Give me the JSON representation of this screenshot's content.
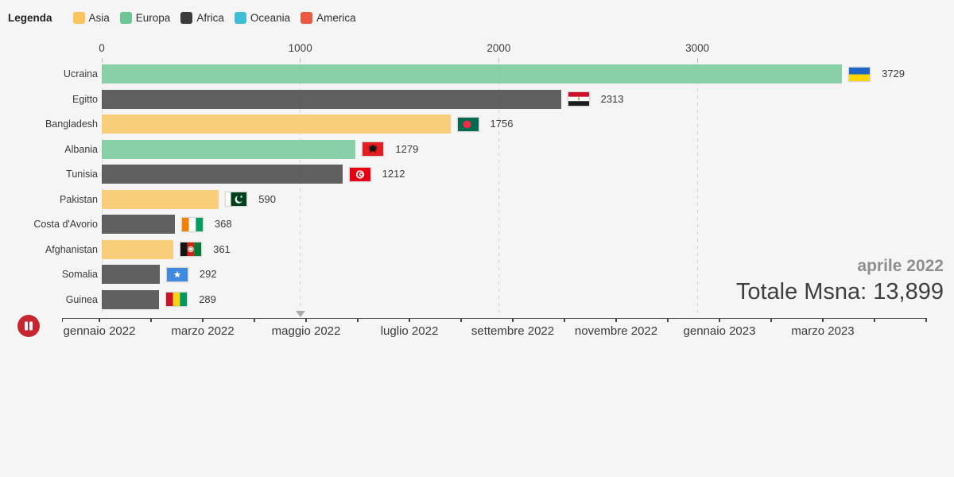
{
  "legend": {
    "title": "Legenda",
    "items": [
      {
        "label": "Asia",
        "color": "#FAC45B"
      },
      {
        "label": "Europa",
        "color": "#6EC694"
      },
      {
        "label": "Africa",
        "color": "#3B3B3B"
      },
      {
        "label": "Oceania",
        "color": "#3EBED4"
      },
      {
        "label": "America",
        "color": "#EA5A40"
      }
    ]
  },
  "chart_data": {
    "type": "bar",
    "orientation": "horizontal",
    "title": "",
    "x_ticks": [
      0,
      1000,
      2000,
      3000
    ],
    "x_max": 4200,
    "grid": true,
    "bars": [
      {
        "label": "Ucraina",
        "value": 3729,
        "continent": "Europa",
        "flag": "ukraine"
      },
      {
        "label": "Egitto",
        "value": 2313,
        "continent": "Africa",
        "flag": "egypt"
      },
      {
        "label": "Bangladesh",
        "value": 1756,
        "continent": "Asia",
        "flag": "bangladesh"
      },
      {
        "label": "Albania",
        "value": 1279,
        "continent": "Europa",
        "flag": "albania"
      },
      {
        "label": "Tunisia",
        "value": 1212,
        "continent": "Africa",
        "flag": "tunisia"
      },
      {
        "label": "Pakistan",
        "value": 590,
        "continent": "Asia",
        "flag": "pakistan"
      },
      {
        "label": "Costa d'Avorio",
        "value": 368,
        "continent": "Africa",
        "flag": "cote-divoire"
      },
      {
        "label": "Afghanistan",
        "value": 361,
        "continent": "Asia",
        "flag": "afghanistan"
      },
      {
        "label": "Somalia",
        "value": 292,
        "continent": "Africa",
        "flag": "somalia"
      },
      {
        "label": "Guinea",
        "value": 289,
        "continent": "Africa",
        "flag": "guinea"
      }
    ]
  },
  "status": {
    "period": "aprile 2022",
    "total_label": "Totale Msna:",
    "total_value": "13,899"
  },
  "timeline": {
    "tick_labels": [
      "gennaio 2022",
      "marzo 2022",
      "maggio 2022",
      "luglio 2022",
      "settembre 2022",
      "novembre 2022",
      "gennaio 2023",
      "marzo 2023"
    ],
    "months_count": 17,
    "current_position_label": "aprile 2022"
  },
  "controls": {
    "state": "playing",
    "button": "pause"
  }
}
